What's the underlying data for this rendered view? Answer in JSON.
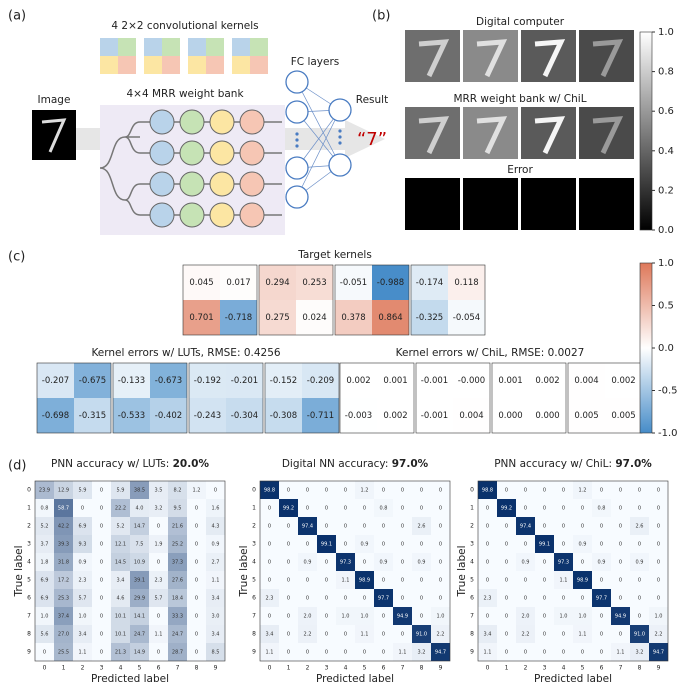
{
  "panels": {
    "a": "(a)",
    "b": "(b)",
    "c": "(c)",
    "d": "(d)"
  },
  "diagram": {
    "kernels_title": "4 2×2 convolutional kernels",
    "weight_bank_title": "4×4 MRR weight bank",
    "image_label": "Image",
    "fc_label": "FC layers",
    "result_label": "Result",
    "result": "“7”"
  },
  "feature_maps": {
    "rows": [
      "Digital computer",
      "MRR weight bank w/ ChiL",
      "Error"
    ],
    "colorbar_ticks": [
      {
        "value": 1,
        "label": "1.0"
      },
      0.8,
      0.6,
      0.4,
      0.2,
      {
        "value": 0,
        "label": "0.0"
      }
    ]
  },
  "kernels": {
    "target_title": "Target kernels",
    "target": [
      [
        [
          0.045,
          0.017
        ],
        [
          0.701,
          -0.718
        ]
      ],
      [
        [
          0.294,
          0.253
        ],
        [
          0.275,
          0.024
        ]
      ],
      [
        [
          -0.051,
          -0.988
        ],
        [
          0.378,
          0.864
        ]
      ],
      [
        [
          -0.174,
          0.118
        ],
        [
          -0.325,
          -0.054
        ]
      ]
    ],
    "lut_title": "Kernel errors w/ LUTs, RMSE: 0.4256",
    "lut": [
      [
        [
          -0.207,
          -0.675
        ],
        [
          -0.698,
          -0.315
        ]
      ],
      [
        [
          -0.133,
          -0.673
        ],
        [
          -0.533,
          -0.402
        ]
      ],
      [
        [
          -0.192,
          -0.201
        ],
        [
          -0.243,
          -0.304
        ]
      ],
      [
        [
          -0.152,
          -0.209
        ],
        [
          -0.308,
          -0.711
        ]
      ]
    ],
    "chil_title": "Kernel errors w/ ChiL, RMSE: 0.0027",
    "chil": [
      [
        [
          0.002,
          0.001
        ],
        [
          -0.003,
          0.002
        ]
      ],
      [
        [
          -0.001,
          {
            "value": 0,
            "label": "-0.000"
          }
        ],
        [
          -0.001,
          0.004
        ]
      ],
      [
        [
          0.001,
          0.002
        ],
        [
          {
            "value": 0,
            "label": "0.000"
          },
          {
            "value": 0,
            "label": "0.000"
          }
        ]
      ],
      [
        [
          0.004,
          0.002
        ],
        [
          0.005,
          0.005
        ]
      ]
    ],
    "colorbar_ticks": [
      {
        "value": 1,
        "label": "1.0"
      },
      0.5,
      {
        "value": 0,
        "label": "0.0"
      },
      -0.5,
      {
        "value": -1,
        "label": "-1.0"
      }
    ]
  },
  "confusion": {
    "classes": [
      0,
      1,
      2,
      3,
      4,
      5,
      6,
      7,
      8,
      9
    ],
    "xlabel": "Predicted label",
    "ylabel": "True label",
    "matrices": [
      {
        "title": "PNN accuracy w/ LUTs: ",
        "accuracy": "20.0%",
        "values": [
          [
            23.9,
            12.9,
            5.9,
            0,
            5.9,
            38.5,
            3.5,
            8.2,
            1.2,
            0
          ],
          [
            0.8,
            58.7,
            0,
            0,
            22.2,
            {
              "value": 4,
              "label": "4.0"
            },
            3.2,
            9.5,
            0,
            1.6
          ],
          [
            5.2,
            42.2,
            6.9,
            0,
            5.2,
            14.7,
            0,
            21.6,
            0,
            4.3
          ],
          [
            3.7,
            39.3,
            9.3,
            0,
            12.1,
            7.5,
            1.9,
            25.2,
            0,
            0.9
          ],
          [
            1.8,
            31.8,
            0.9,
            0,
            14.5,
            10.9,
            0,
            37.3,
            0,
            2.7
          ],
          [
            6.9,
            17.2,
            2.3,
            0,
            3.4,
            39.1,
            2.3,
            27.6,
            0,
            1.1
          ],
          [
            6.9,
            25.3,
            5.7,
            0,
            4.6,
            29.9,
            5.7,
            18.4,
            0,
            3.4
          ],
          [
            {
              "value": 1,
              "label": "1.0"
            },
            37.4,
            {
              "value": 1,
              "label": "1.0"
            },
            0,
            10.1,
            14.1,
            0,
            33.3,
            0,
            {
              "value": 3,
              "label": "3.0"
            }
          ],
          [
            5.6,
            {
              "value": 27,
              "label": "27.0"
            },
            3.4,
            0,
            10.1,
            24.7,
            1.1,
            24.7,
            0,
            3.4
          ],
          [
            0,
            25.5,
            1.1,
            0,
            21.3,
            14.9,
            0,
            28.7,
            0,
            8.5
          ]
        ]
      },
      {
        "title": "Digital NN accuracy: ",
        "accuracy": "97.0%",
        "values": [
          [
            98.8,
            0,
            0,
            0,
            0,
            1.2,
            0,
            0,
            0,
            0
          ],
          [
            0,
            99.2,
            0,
            0,
            0,
            0,
            0.8,
            0,
            0,
            0
          ],
          [
            0,
            0,
            97.4,
            0,
            0,
            0,
            0,
            0,
            2.6,
            0
          ],
          [
            0,
            0,
            0,
            99.1,
            0,
            0.9,
            0,
            0,
            0,
            0
          ],
          [
            0,
            0,
            0.9,
            0,
            97.3,
            0,
            0.9,
            0,
            0.9,
            0
          ],
          [
            0,
            0,
            0,
            0,
            1.1,
            98.9,
            0,
            0,
            0,
            0
          ],
          [
            2.3,
            0,
            0,
            0,
            0,
            0,
            97.7,
            0,
            0,
            0
          ],
          [
            0,
            0,
            {
              "value": 2,
              "label": "2.0"
            },
            0,
            {
              "value": 1,
              "label": "1.0"
            },
            {
              "value": 1,
              "label": "1.0"
            },
            0,
            94.9,
            0,
            {
              "value": 1,
              "label": "1.0"
            }
          ],
          [
            3.4,
            0,
            2.2,
            0,
            0,
            1.1,
            0,
            0,
            {
              "value": 91,
              "label": "91.0"
            },
            2.2
          ],
          [
            1.1,
            0,
            0,
            0,
            0,
            0,
            0,
            1.1,
            3.2,
            94.7
          ]
        ]
      },
      {
        "title": "PNN accuracy w/ ChiL: ",
        "accuracy": "97.0%",
        "values": [
          [
            98.8,
            0,
            0,
            0,
            0,
            1.2,
            0,
            0,
            0,
            0
          ],
          [
            0,
            99.2,
            0,
            0,
            0,
            0,
            0.8,
            0,
            0,
            0
          ],
          [
            0,
            0,
            97.4,
            0,
            0,
            0,
            0,
            0,
            2.6,
            0
          ],
          [
            0,
            0,
            0,
            99.1,
            0,
            0.9,
            0,
            0,
            0,
            0
          ],
          [
            0,
            0,
            0.9,
            0,
            97.3,
            0,
            0.9,
            0,
            0.9,
            0
          ],
          [
            0,
            0,
            0,
            0,
            1.1,
            98.9,
            0,
            0,
            0,
            0
          ],
          [
            2.3,
            0,
            0,
            0,
            0,
            0,
            97.7,
            0,
            0,
            0
          ],
          [
            0,
            0,
            {
              "value": 2,
              "label": "2.0"
            },
            0,
            {
              "value": 1,
              "label": "1.0"
            },
            {
              "value": 1,
              "label": "1.0"
            },
            0,
            94.9,
            0,
            {
              "value": 1,
              "label": "1.0"
            }
          ],
          [
            3.4,
            0,
            2.2,
            0,
            0,
            1.1,
            0,
            0,
            {
              "value": 91,
              "label": "91.0"
            },
            2.2
          ],
          [
            1.1,
            0,
            0,
            0,
            0,
            0,
            0,
            1.1,
            3.2,
            94.7
          ]
        ]
      }
    ]
  }
}
